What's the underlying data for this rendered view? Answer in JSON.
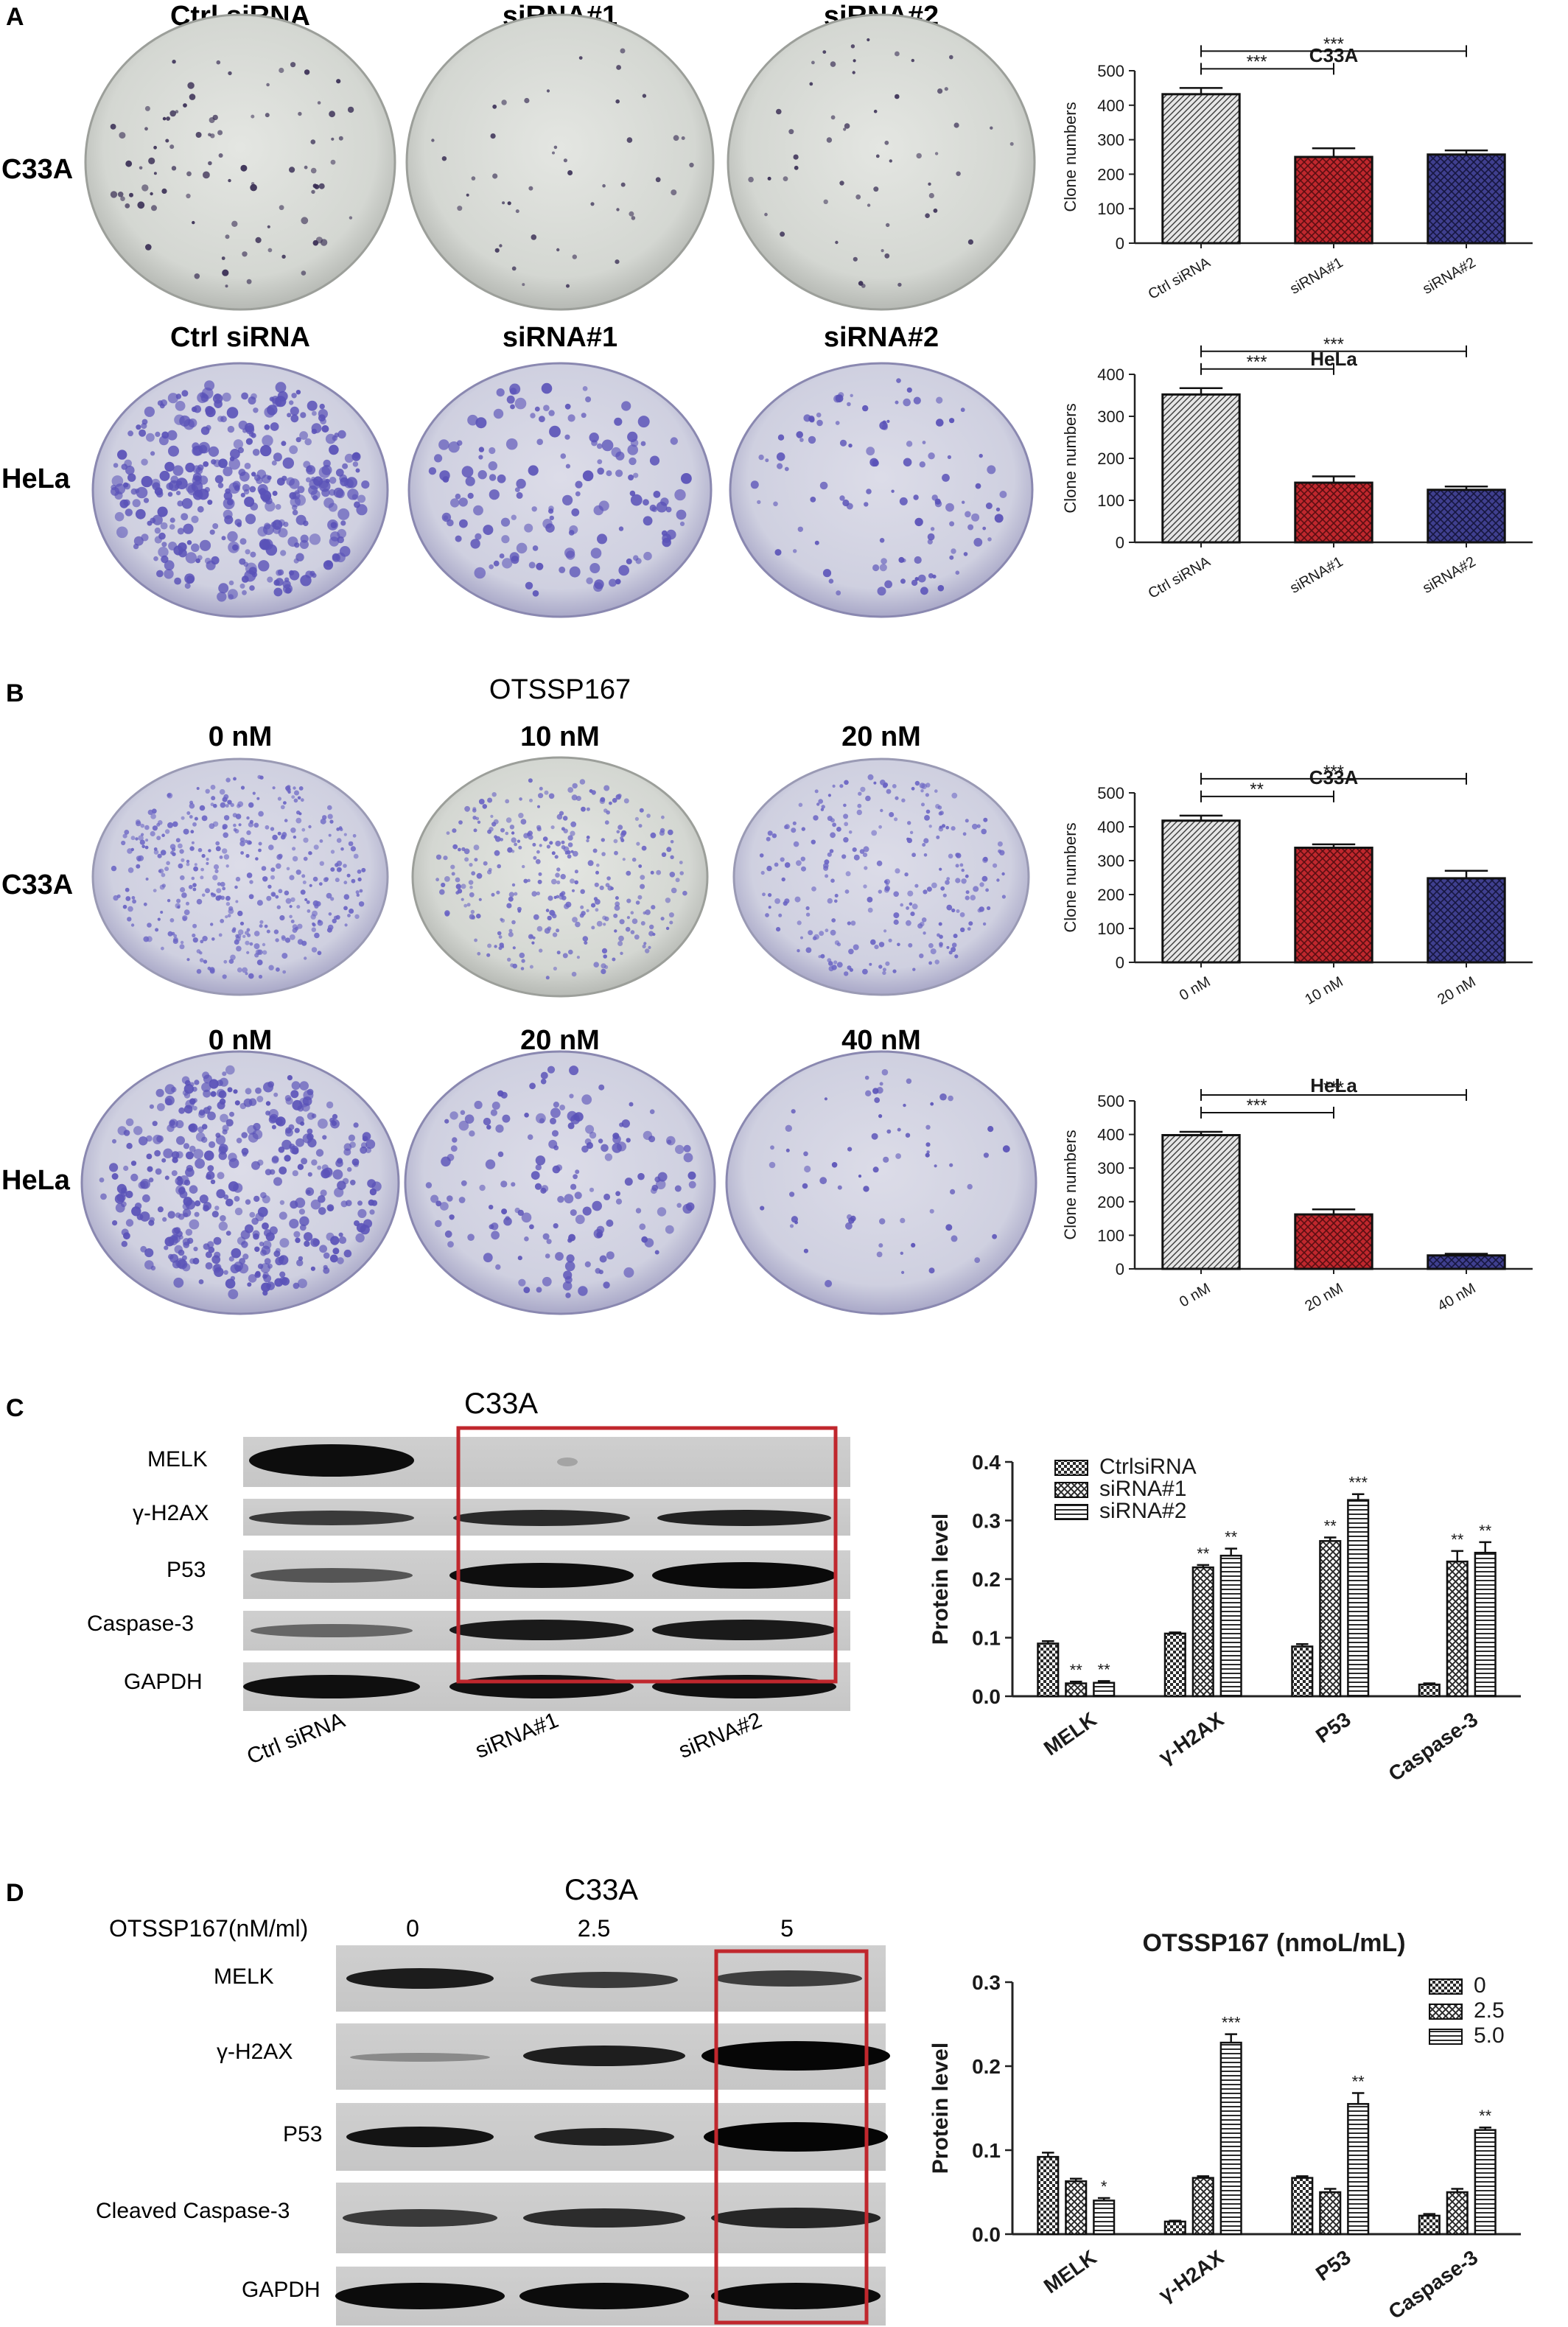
{
  "panels": {
    "A": {
      "letter": "A",
      "columns_top": [
        "Ctrl siRNA",
        "siRNA#1",
        "siRNA#2"
      ],
      "columns_bottom": [
        "Ctrl siRNA",
        "siRNA#1",
        "siRNA#2"
      ],
      "rows": [
        "C33A",
        "HeLa"
      ]
    },
    "B": {
      "letter": "B",
      "drug": "OTSSP167",
      "columns_top": [
        "0 nM",
        "10 nM",
        "20 nM"
      ],
      "columns_bottom": [
        "0 nM",
        "20 nM",
        "40 nM"
      ],
      "rows": [
        "C33A",
        "HeLa"
      ]
    },
    "C": {
      "letter": "C",
      "cell_line": "C33A",
      "proteins": [
        "MELK",
        "γ-H2AX",
        "P53",
        "Caspase-3",
        "GAPDH"
      ],
      "lanes": [
        "Ctrl siRNA",
        "siRNA#1",
        "siRNA#2"
      ]
    },
    "D": {
      "letter": "D",
      "cell_line": "C33A",
      "dose_label": "OTSSP167(nM/ml)",
      "doses": [
        "0",
        "2.5",
        "5"
      ],
      "proteins": [
        "MELK",
        "γ-H2AX",
        "P53",
        "Cleaved Caspase-3",
        "GAPDH"
      ]
    }
  },
  "colors": {
    "ctrl_bar": "#e6e6e6",
    "red_bar": "#c0272d",
    "blue_bar": "#3f3f8f",
    "highlight_box": "#c0272d",
    "colony": "#5a52b8"
  },
  "chart_data": [
    {
      "type": "bar",
      "title": "C33A",
      "categories": [
        "Ctrl siRNA",
        "siRNA#1",
        "siRNA#2"
      ],
      "values": [
        432,
        250,
        257
      ],
      "errors": [
        18,
        25,
        12
      ],
      "ylabel": "Clone numbers",
      "ylim": [
        0,
        500
      ],
      "yticks": [
        "0",
        "100",
        "200",
        "300",
        "400",
        "500"
      ],
      "significance": [
        "***",
        "***"
      ]
    },
    {
      "type": "bar",
      "title": "HeLa",
      "categories": [
        "Ctrl siRNA",
        "siRNA#1",
        "siRNA#2"
      ],
      "values": [
        352,
        142,
        125
      ],
      "errors": [
        15,
        15,
        8
      ],
      "ylabel": "Clone numbers",
      "ylim": [
        0,
        400
      ],
      "yticks": [
        "0",
        "100",
        "200",
        "300",
        "400"
      ],
      "significance": [
        "***",
        "***"
      ]
    },
    {
      "type": "bar",
      "title": "C33A",
      "categories": [
        "0 nM",
        "10 nM",
        "20 nM"
      ],
      "values": [
        418,
        338,
        248
      ],
      "errors": [
        15,
        10,
        22
      ],
      "ylabel": "Clone numbers",
      "ylim": [
        0,
        500
      ],
      "yticks": [
        "0",
        "100",
        "200",
        "300",
        "400",
        "500"
      ],
      "significance": [
        "**",
        "***"
      ]
    },
    {
      "type": "bar",
      "title": "HeLa",
      "categories": [
        "0 nM",
        "20 nM",
        "40 nM"
      ],
      "values": [
        398,
        162,
        40
      ],
      "errors": [
        10,
        15,
        5
      ],
      "ylabel": "Clone numbers",
      "ylim": [
        0,
        500
      ],
      "yticks": [
        "0",
        "100",
        "200",
        "300",
        "400",
        "500"
      ],
      "significance": [
        "***",
        "***"
      ]
    },
    {
      "type": "bar",
      "title": "",
      "categories": [
        "MELK",
        "γ-H2AX",
        "P53",
        "Caspase-3"
      ],
      "series": [
        {
          "name": "CtrlsiRNA",
          "values": [
            0.09,
            0.107,
            0.085,
            0.02
          ],
          "errors": [
            0.004,
            0.002,
            0.004,
            0.002
          ],
          "marks": [
            "",
            "",
            "",
            ""
          ]
        },
        {
          "name": "siRNA#1",
          "values": [
            0.022,
            0.22,
            0.265,
            0.23
          ],
          "errors": [
            0.003,
            0.004,
            0.006,
            0.018
          ],
          "marks": [
            "**",
            "**",
            "**",
            "**"
          ]
        },
        {
          "name": "siRNA#2",
          "values": [
            0.023,
            0.24,
            0.335,
            0.245
          ],
          "errors": [
            0.003,
            0.012,
            0.01,
            0.018
          ],
          "marks": [
            "**",
            "**",
            "***",
            "**"
          ]
        }
      ],
      "ylabel": "Protein level",
      "ylim": [
        0,
        0.4
      ],
      "yticks": [
        "0.0",
        "0.1",
        "0.2",
        "0.3",
        "0.4"
      ]
    },
    {
      "type": "bar",
      "title": "OTSSP167 (nmoL/mL)",
      "categories": [
        "MELK",
        "γ-H2AX",
        "P53",
        "Caspase-3"
      ],
      "series": [
        {
          "name": "0",
          "values": [
            0.092,
            0.015,
            0.067,
            0.022
          ],
          "errors": [
            0.005,
            0.001,
            0.002,
            0.002
          ],
          "marks": [
            "",
            "",
            "",
            ""
          ]
        },
        {
          "name": "2.5",
          "values": [
            0.063,
            0.067,
            0.05,
            0.05
          ],
          "errors": [
            0.003,
            0.002,
            0.004,
            0.004
          ],
          "marks": [
            "",
            "",
            "",
            ""
          ]
        },
        {
          "name": "5.0",
          "values": [
            0.04,
            0.228,
            0.155,
            0.124
          ],
          "errors": [
            0.003,
            0.01,
            0.013,
            0.003
          ],
          "marks": [
            "*",
            "***",
            "**",
            "**"
          ]
        }
      ],
      "ylabel": "Protein level",
      "ylim": [
        0,
        0.3
      ],
      "yticks": [
        "0.0",
        "0.1",
        "0.2",
        "0.3"
      ]
    }
  ]
}
